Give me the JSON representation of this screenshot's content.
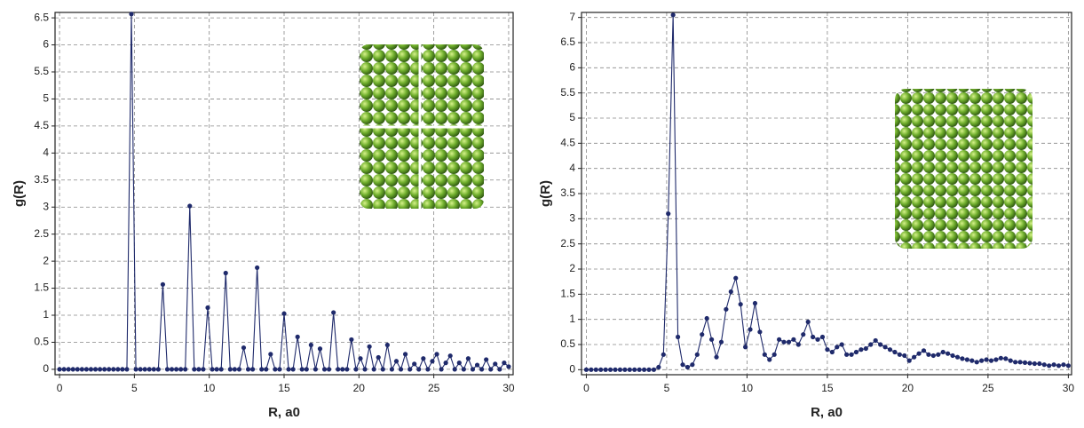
{
  "chart_data": [
    {
      "type": "line",
      "xlabel": "R, a0",
      "ylabel": "g(R)",
      "color": "#1f2a6b",
      "grid": true,
      "xlim": [
        -0.3,
        30.3
      ],
      "ylim": [
        -0.1,
        6.6
      ],
      "xticks": [
        0,
        5,
        10,
        15,
        20,
        25,
        30
      ],
      "yticks": [
        0,
        0.5,
        1,
        1.5,
        2,
        2.5,
        3,
        3.5,
        4,
        4.5,
        5,
        5.5,
        6,
        6.5
      ],
      "x": [
        0,
        0.3,
        0.6,
        0.9,
        1.2,
        1.5,
        1.8,
        2.1,
        2.4,
        2.7,
        3,
        3.3,
        3.6,
        3.9,
        4.2,
        4.5,
        4.8,
        5.1,
        5.4,
        5.7,
        6,
        6.3,
        6.6,
        6.9,
        7.2,
        7.5,
        7.8,
        8.1,
        8.4,
        8.7,
        9,
        9.3,
        9.6,
        9.9,
        10.2,
        10.5,
        10.8,
        11.1,
        11.4,
        11.7,
        12,
        12.3,
        12.6,
        12.9,
        13.2,
        13.5,
        13.8,
        14.1,
        14.4,
        14.7,
        15,
        15.3,
        15.6,
        15.9,
        16.2,
        16.5,
        16.8,
        17.1,
        17.4,
        17.7,
        18,
        18.3,
        18.6,
        18.9,
        19.2,
        19.5,
        19.8,
        20.1,
        20.4,
        20.7,
        21,
        21.3,
        21.6,
        21.9,
        22.2,
        22.5,
        22.8,
        23.1,
        23.4,
        23.7,
        24,
        24.3,
        24.6,
        24.9,
        25.2,
        25.5,
        25.8,
        26.1,
        26.4,
        26.7,
        27,
        27.3,
        27.6,
        27.9,
        28.2,
        28.5,
        28.8,
        29.1,
        29.4,
        29.7,
        30
      ],
      "values": [
        0,
        0,
        0,
        0,
        0,
        0,
        0,
        0,
        0,
        0,
        0,
        0,
        0,
        0,
        0,
        0,
        6.57,
        0,
        0,
        0,
        0,
        0,
        0,
        1.57,
        0,
        0,
        0,
        0,
        0,
        3.02,
        0,
        0,
        0,
        1.14,
        0,
        0,
        0,
        1.78,
        0,
        0,
        0,
        0.4,
        0,
        0,
        1.88,
        0,
        0,
        0.28,
        0,
        0,
        1.03,
        0,
        0,
        0.6,
        0,
        0,
        0.45,
        0,
        0.38,
        0,
        0,
        1.05,
        0,
        0,
        0,
        0.55,
        0,
        0.2,
        0,
        0.42,
        0,
        0.22,
        0,
        0.45,
        0,
        0.15,
        0,
        0.28,
        0,
        0.1,
        0,
        0.2,
        0,
        0.15,
        0.28,
        0,
        0.12,
        0.25,
        0,
        0.12,
        0,
        0.2,
        0,
        0.08,
        0,
        0.18,
        0,
        0.1,
        0,
        0.12,
        0.05
      ]
    },
    {
      "type": "line",
      "xlabel": "R, a0",
      "ylabel": "g(R)",
      "color": "#1f2a6b",
      "grid": true,
      "xlim": [
        -0.3,
        30.2
      ],
      "ylim": [
        -0.1,
        7.1
      ],
      "xticks": [
        0,
        5,
        10,
        15,
        20,
        25,
        30
      ],
      "yticks": [
        0,
        0.5,
        1,
        1.5,
        2,
        2.5,
        3,
        3.5,
        4,
        4.5,
        5,
        5.5,
        6,
        6.5,
        7
      ],
      "x": [
        0,
        0.3,
        0.6,
        0.9,
        1.2,
        1.5,
        1.8,
        2.1,
        2.4,
        2.7,
        3,
        3.3,
        3.6,
        3.9,
        4.2,
        4.5,
        4.8,
        5.1,
        5.4,
        5.7,
        6,
        6.3,
        6.6,
        6.9,
        7.2,
        7.5,
        7.8,
        8.1,
        8.4,
        8.7,
        9,
        9.3,
        9.6,
        9.9,
        10.2,
        10.5,
        10.8,
        11.1,
        11.4,
        11.7,
        12,
        12.3,
        12.6,
        12.9,
        13.2,
        13.5,
        13.8,
        14.1,
        14.4,
        14.7,
        15,
        15.3,
        15.6,
        15.9,
        16.2,
        16.5,
        16.8,
        17.1,
        17.4,
        17.7,
        18,
        18.3,
        18.6,
        18.9,
        19.2,
        19.5,
        19.8,
        20.1,
        20.4,
        20.7,
        21,
        21.3,
        21.6,
        21.9,
        22.2,
        22.5,
        22.8,
        23.1,
        23.4,
        23.7,
        24,
        24.3,
        24.6,
        24.9,
        25.2,
        25.5,
        25.8,
        26.1,
        26.4,
        26.7,
        27,
        27.3,
        27.6,
        27.9,
        28.2,
        28.5,
        28.8,
        29.1,
        29.4,
        29.7,
        30
      ],
      "values": [
        0,
        0,
        0,
        0,
        0,
        0,
        0,
        0,
        0,
        0,
        0,
        0,
        0,
        0,
        0,
        0.05,
        0.3,
        3.1,
        7.05,
        0.65,
        0.1,
        0.05,
        0.1,
        0.3,
        0.7,
        1.02,
        0.6,
        0.25,
        0.55,
        1.2,
        1.55,
        1.82,
        1.3,
        0.45,
        0.8,
        1.32,
        0.75,
        0.3,
        0.2,
        0.3,
        0.6,
        0.55,
        0.55,
        0.6,
        0.5,
        0.7,
        0.95,
        0.65,
        0.6,
        0.65,
        0.4,
        0.35,
        0.45,
        0.5,
        0.3,
        0.3,
        0.35,
        0.4,
        0.42,
        0.5,
        0.58,
        0.5,
        0.45,
        0.4,
        0.35,
        0.3,
        0.28,
        0.18,
        0.25,
        0.32,
        0.38,
        0.3,
        0.28,
        0.3,
        0.35,
        0.32,
        0.28,
        0.25,
        0.22,
        0.2,
        0.18,
        0.15,
        0.18,
        0.2,
        0.18,
        0.2,
        0.23,
        0.22,
        0.18,
        0.15,
        0.15,
        0.14,
        0.13,
        0.12,
        0.12,
        0.1,
        0.08,
        0.1,
        0.08,
        0.1,
        0.08
      ]
    }
  ]
}
